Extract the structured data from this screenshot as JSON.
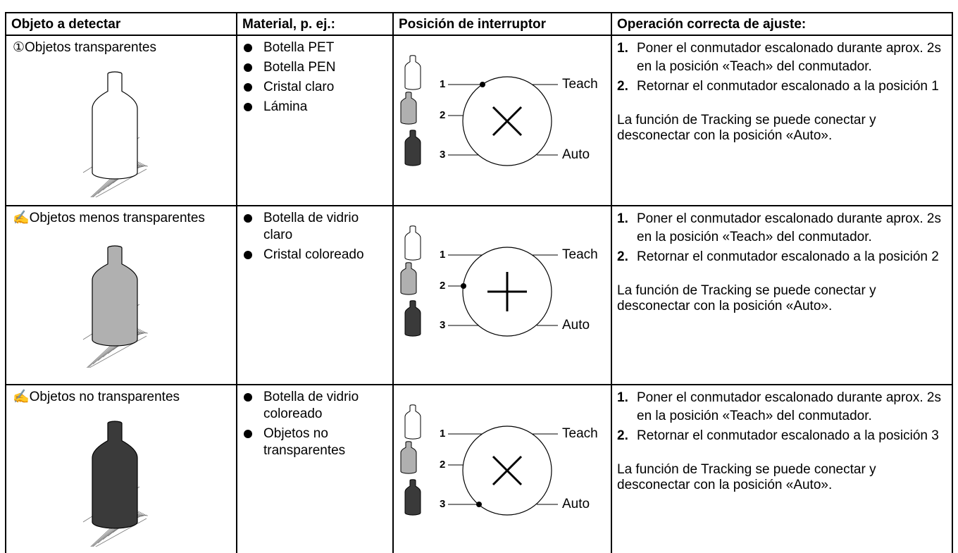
{
  "header": {
    "columns": [
      "Objeto a detectar",
      "Material, p. ej.:",
      "Posición de interruptor",
      "Operación correcta de ajuste:"
    ]
  },
  "rows": [
    {
      "object": "①Objetos transparentes",
      "materials": [
        "Botella PET",
        "Botella PEN",
        "Cristal claro",
        "Lámina"
      ],
      "switch": {
        "positions": [
          "1",
          "2",
          "3"
        ],
        "teach": "Teach",
        "auto": "Auto"
      },
      "steps": [
        {
          "number": "1.",
          "text": "Poner el conmutador escalonado durante aprox. 2s en la posición «Teach» del conmutador."
        },
        {
          "number": "2.",
          "text": "Retornar el conmutador escalonado a la posición 1"
        }
      ],
      "note": "La función de Tracking se puede conectar y desconectar con la posición «Auto»."
    },
    {
      "object": "✍Objetos menos transparentes",
      "materials": [
        "Botella de vidrio claro",
        "Cristal coloreado"
      ],
      "switch": {
        "positions": [
          "1",
          "2",
          "3"
        ],
        "teach": "Teach",
        "auto": "Auto"
      },
      "steps": [
        {
          "number": "1.",
          "text": "Poner el conmutador escalonado durante aprox. 2s en la posición «Teach» del conmutador."
        },
        {
          "number": "2.",
          "text": "Retornar el conmutador escalonado a la posición 2"
        }
      ],
      "note": "La función de Tracking se puede conectar y desconectar con la posición «Auto»."
    },
    {
      "object": "✍Objetos no transparentes",
      "materials": [
        "Botella de vidrio coloreado",
        "Objetos no transparentes"
      ],
      "switch": {
        "positions": [
          "1",
          "2",
          "3"
        ],
        "teach": "Teach",
        "auto": "Auto"
      },
      "steps": [
        {
          "number": "1.",
          "text": "Poner el conmutador escalonado durante aprox. 2s en la posición «Teach» del conmutador."
        },
        {
          "number": "2.",
          "text": "Retornar el conmutador escalonado a la posición 3"
        }
      ],
      "note": "La función de Tracking se puede conectar y desconectar con la posición «Auto»."
    }
  ]
}
